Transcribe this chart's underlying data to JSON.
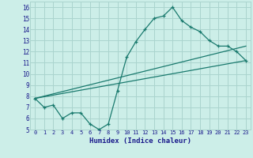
{
  "xlabel": "Humidex (Indice chaleur)",
  "bg_color": "#cceee8",
  "line_color": "#1a7a6e",
  "grid_color": "#aad4ce",
  "xlim": [
    -0.5,
    23.5
  ],
  "ylim": [
    5,
    16.5
  ],
  "xticks": [
    0,
    1,
    2,
    3,
    4,
    5,
    6,
    7,
    8,
    9,
    10,
    11,
    12,
    13,
    14,
    15,
    16,
    17,
    18,
    19,
    20,
    21,
    22,
    23
  ],
  "yticks": [
    5,
    6,
    7,
    8,
    9,
    10,
    11,
    12,
    13,
    14,
    15,
    16
  ],
  "line1": {
    "x": [
      0,
      1,
      2,
      3,
      4,
      5,
      6,
      7,
      8,
      9,
      10,
      11,
      12,
      13,
      14,
      15,
      16,
      17,
      18,
      19,
      20,
      21,
      22,
      23
    ],
    "y": [
      7.8,
      7.0,
      7.2,
      6.0,
      6.5,
      6.5,
      5.5,
      5.0,
      5.5,
      8.5,
      11.5,
      12.9,
      14.0,
      15.0,
      15.2,
      16.0,
      14.8,
      14.2,
      13.8,
      13.0,
      12.5,
      12.5,
      12.0,
      11.2
    ]
  },
  "line2": {
    "x": [
      0,
      23
    ],
    "y": [
      7.8,
      12.5
    ]
  },
  "line3": {
    "x": [
      0,
      23
    ],
    "y": [
      7.8,
      11.2
    ]
  }
}
